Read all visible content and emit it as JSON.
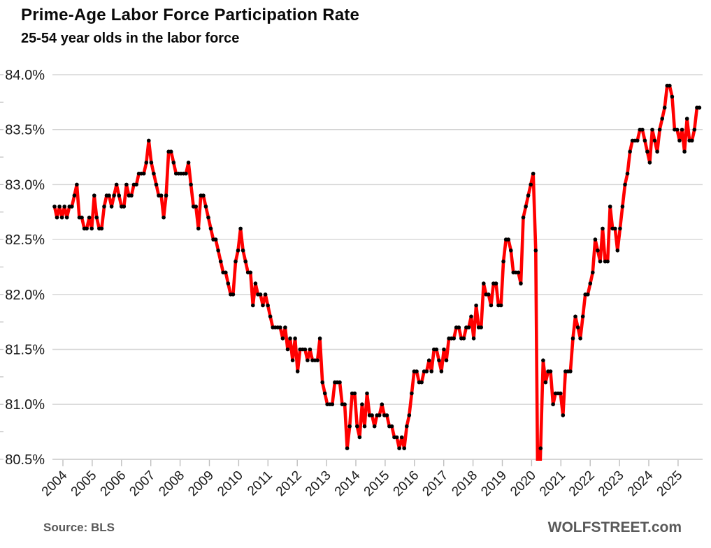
{
  "header": {
    "title": "Prime-Age Labor Force Participation Rate",
    "subtitle": "25-54 year olds in the labor force"
  },
  "footer": {
    "source": "Source: BLS",
    "brand": "WOLFSTREET.com"
  },
  "colors": {
    "line": "#ff0000",
    "marker": "#000000",
    "grid": "#d6d6d6",
    "axis": "#bfbfbf",
    "tick_label": "#1a1a1a",
    "footer_text": "#595959"
  },
  "chart_data": {
    "type": "line",
    "title": "Prime-Age Labor Force Participation Rate",
    "subtitle": "25-54 year olds in the labor force",
    "source": "BLS",
    "unit": "percent",
    "frequency": "monthly",
    "x_start": "2004-01",
    "x_end": "2025-09",
    "ylim": [
      80.5,
      84.0
    ],
    "y_major_step": 0.5,
    "y_minor_step": 0.25,
    "grid": "horizontal-only",
    "legend": "none",
    "marker": "black-dot-every-month",
    "clipped_low_note": "Apr 2020 value 79.8 falls below the 80.5% axis floor and is visually cut off",
    "y_tick_labels": [
      "84.0%",
      "83.5%",
      "83.0%",
      "82.5%",
      "82.0%",
      "81.5%",
      "81.0%",
      "80.5%"
    ],
    "x_tick_labels": [
      "2004",
      "2005",
      "2006",
      "2007",
      "2008",
      "2009",
      "2010",
      "2011",
      "2012",
      "2013",
      "2014",
      "2015",
      "2016",
      "2017",
      "2018",
      "2019",
      "2020",
      "2021",
      "2022",
      "2023",
      "2024",
      "2025"
    ],
    "series": [
      {
        "name": "Prime-age (25-54) labor force participation rate, %",
        "start": "2004-01",
        "values": [
          82.8,
          82.7,
          82.8,
          82.7,
          82.8,
          82.7,
          82.8,
          82.8,
          82.9,
          83.0,
          82.7,
          82.7,
          82.6,
          82.6,
          82.7,
          82.6,
          82.9,
          82.7,
          82.6,
          82.6,
          82.8,
          82.9,
          82.9,
          82.8,
          82.9,
          83.0,
          82.9,
          82.8,
          82.8,
          83.0,
          82.9,
          82.9,
          83.0,
          83.0,
          83.1,
          83.1,
          83.1,
          83.2,
          83.4,
          83.2,
          83.1,
          83.0,
          82.9,
          82.9,
          82.7,
          82.9,
          83.3,
          83.3,
          83.2,
          83.1,
          83.1,
          83.1,
          83.1,
          83.1,
          83.2,
          83.0,
          82.8,
          82.8,
          82.6,
          82.9,
          82.9,
          82.8,
          82.7,
          82.6,
          82.5,
          82.5,
          82.4,
          82.3,
          82.2,
          82.2,
          82.1,
          82.0,
          82.0,
          82.3,
          82.4,
          82.6,
          82.4,
          82.3,
          82.2,
          82.2,
          81.9,
          82.1,
          82.0,
          82.0,
          81.9,
          82.0,
          81.9,
          81.8,
          81.7,
          81.7,
          81.7,
          81.7,
          81.6,
          81.7,
          81.5,
          81.6,
          81.4,
          81.6,
          81.3,
          81.5,
          81.5,
          81.5,
          81.4,
          81.5,
          81.4,
          81.4,
          81.4,
          81.6,
          81.2,
          81.1,
          81.0,
          81.0,
          81.0,
          81.2,
          81.2,
          81.2,
          81.0,
          81.0,
          80.6,
          80.8,
          81.1,
          81.1,
          80.8,
          80.7,
          81.0,
          80.8,
          81.1,
          80.9,
          80.9,
          80.8,
          80.9,
          80.9,
          81.0,
          80.9,
          80.9,
          80.8,
          80.8,
          80.7,
          80.7,
          80.6,
          80.7,
          80.6,
          80.8,
          80.9,
          81.1,
          81.3,
          81.3,
          81.2,
          81.2,
          81.3,
          81.3,
          81.4,
          81.3,
          81.5,
          81.5,
          81.4,
          81.3,
          81.5,
          81.4,
          81.6,
          81.6,
          81.6,
          81.7,
          81.7,
          81.6,
          81.6,
          81.7,
          81.7,
          81.8,
          81.6,
          81.9,
          81.7,
          81.7,
          82.1,
          82.0,
          82.0,
          81.9,
          82.1,
          82.1,
          81.9,
          81.9,
          82.3,
          82.5,
          82.5,
          82.4,
          82.2,
          82.2,
          82.2,
          82.1,
          82.7,
          82.8,
          82.9,
          83.0,
          83.1,
          82.4,
          79.8,
          80.6,
          81.4,
          81.2,
          81.3,
          81.3,
          81.0,
          81.1,
          81.1,
          81.1,
          80.9,
          81.3,
          81.3,
          81.3,
          81.6,
          81.8,
          81.7,
          81.6,
          81.8,
          82.0,
          82.0,
          82.1,
          82.2,
          82.5,
          82.4,
          82.3,
          82.6,
          82.3,
          82.3,
          82.8,
          82.6,
          82.6,
          82.4,
          82.6,
          82.8,
          83.0,
          83.1,
          83.3,
          83.4,
          83.4,
          83.4,
          83.5,
          83.5,
          83.4,
          83.3,
          83.2,
          83.5,
          83.4,
          83.3,
          83.5,
          83.6,
          83.7,
          83.9,
          83.9,
          83.8,
          83.5,
          83.5,
          83.4,
          83.5,
          83.3,
          83.6,
          83.4,
          83.4,
          83.5,
          83.7,
          83.7
        ]
      }
    ]
  }
}
